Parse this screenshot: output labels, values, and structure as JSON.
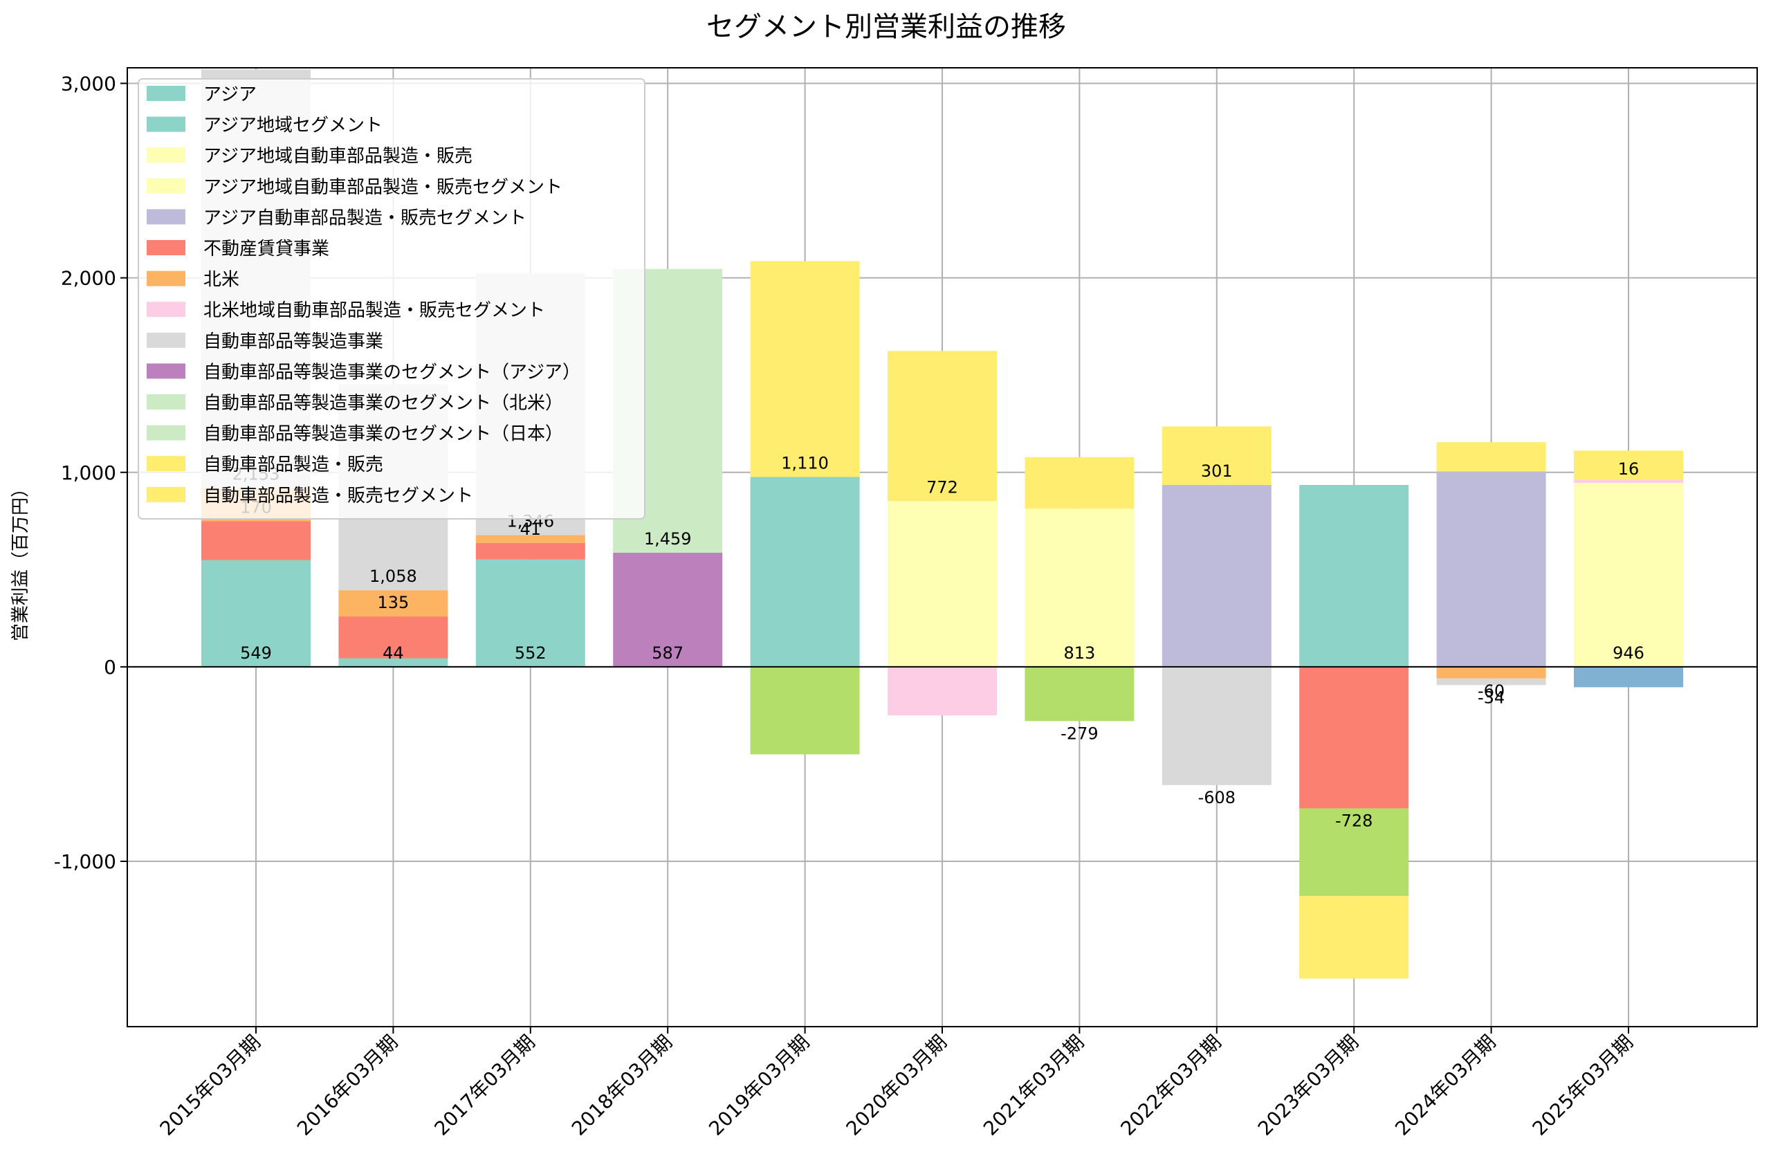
{
  "chart_data": {
    "type": "bar",
    "stacked": true,
    "title": "セグメント別営業利益の推移",
    "ylabel": "営業利益（百万円）",
    "xlabel": "",
    "ylim": [
      -1850,
      3080
    ],
    "yticks": [
      -1000,
      0,
      1000,
      2000,
      3000
    ],
    "ytick_labels": [
      "-1,000",
      "0",
      "1,000",
      "2,000",
      "3,000"
    ],
    "grid": true,
    "legend_position": "top-left",
    "categories": [
      "2015年03月期",
      "2016年03月期",
      "2017年03月期",
      "2018年03月期",
      "2019年03月期",
      "2020年03月期",
      "2021年03月期",
      "2022年03月期",
      "2023年03月期",
      "2024年03月期",
      "2025年03月期"
    ],
    "legend": [
      {
        "name": "アジア",
        "color": "#8dd3c7"
      },
      {
        "name": "アジア地域セグメント",
        "color": "#8dd3c7"
      },
      {
        "name": "アジア地域自動車部品製造・販売",
        "color": "#ffffb3"
      },
      {
        "name": "アジア地域自動車部品製造・販売セグメント",
        "color": "#ffffb3"
      },
      {
        "name": "アジア自動車部品製造・販売セグメント",
        "color": "#bebada"
      },
      {
        "name": "不動産賃貸事業",
        "color": "#fb8072"
      },
      {
        "name": "北米",
        "color": "#fdb462"
      },
      {
        "name": "北米地域自動車部品製造・販売セグメント",
        "color": "#fccde5"
      },
      {
        "name": "自動車部品等製造事業",
        "color": "#d9d9d9"
      },
      {
        "name": "自動車部品等製造事業のセグメント（アジア）",
        "color": "#bc80bd"
      },
      {
        "name": "自動車部品等製造事業のセグメント（北米）",
        "color": "#ccebc5"
      },
      {
        "name": "自動車部品等製造事業のセグメント（日本）",
        "color": "#ccebc5"
      },
      {
        "name": "自動車部品製造・販売",
        "color": "#ffed6f"
      },
      {
        "name": "自動車部品製造・販売セグメント",
        "color": "#ffed6f"
      }
    ],
    "stacks": [
      {
        "category": "2015年03月期",
        "segments": [
          {
            "color": "#8dd3c7",
            "value": 549,
            "label": "549"
          },
          {
            "color": "#fb8072",
            "value": 200,
            "label": ""
          },
          {
            "color": "#fdb462",
            "value": 170,
            "label": "170"
          },
          {
            "color": "#d9d9d9",
            "value": 2153,
            "label": "2,153"
          }
        ]
      },
      {
        "category": "2016年03月期",
        "segments": [
          {
            "color": "#8dd3c7",
            "value": 44,
            "label": "44"
          },
          {
            "color": "#fb8072",
            "value": 215,
            "label": ""
          },
          {
            "color": "#fdb462",
            "value": 135,
            "label": "135"
          },
          {
            "color": "#d9d9d9",
            "value": 1058,
            "label": "1,058"
          }
        ]
      },
      {
        "category": "2017年03月期",
        "segments": [
          {
            "color": "#8dd3c7",
            "value": 552,
            "label": "552"
          },
          {
            "color": "#fb8072",
            "value": 85,
            "label": ""
          },
          {
            "color": "#fdb462",
            "value": 41,
            "label": "41"
          },
          {
            "color": "#d9d9d9",
            "value": 1346,
            "label": "1,346"
          }
        ]
      },
      {
        "category": "2018年03月期",
        "segments": [
          {
            "color": "#bc80bd",
            "value": 587,
            "label": "587"
          },
          {
            "color": "#ccebc5",
            "value": 1459,
            "label": "1,459"
          }
        ]
      },
      {
        "category": "2019年03月期",
        "segments": [
          {
            "color": "#8dd3c7",
            "value": 976,
            "label": ""
          },
          {
            "color": "#ffed6f",
            "value": 1110,
            "label": "1,110"
          },
          {
            "color": "#b3de69",
            "value": -450,
            "label": ""
          }
        ]
      },
      {
        "category": "2020年03月期",
        "segments": [
          {
            "color": "#ffffb3",
            "value": 852,
            "label": ""
          },
          {
            "color": "#ffed6f",
            "value": 772,
            "label": "772"
          },
          {
            "color": "#fccde5",
            "value": -250,
            "label": ""
          }
        ]
      },
      {
        "category": "2021年03月期",
        "segments": [
          {
            "color": "#ffffb3",
            "value": 813,
            "label": "813"
          },
          {
            "color": "#ffed6f",
            "value": 265,
            "label": ""
          },
          {
            "color": "#b3de69",
            "value": -279,
            "label": "-279"
          }
        ]
      },
      {
        "category": "2022年03月期",
        "segments": [
          {
            "color": "#bebada",
            "value": 935,
            "label": ""
          },
          {
            "color": "#ffed6f",
            "value": 301,
            "label": "301"
          },
          {
            "color": "#d9d9d9",
            "value": -608,
            "label": "-608"
          }
        ]
      },
      {
        "category": "2023年03月期",
        "segments": [
          {
            "color": "#8dd3c7",
            "value": 935,
            "label": ""
          },
          {
            "color": "#fb8072",
            "value": -728,
            "label": "-728"
          },
          {
            "color": "#b3de69",
            "value": -450,
            "label": ""
          },
          {
            "color": "#ffed6f",
            "value": -425,
            "label": ""
          }
        ]
      },
      {
        "category": "2024年03月期",
        "segments": [
          {
            "color": "#bebada",
            "value": 1005,
            "label": ""
          },
          {
            "color": "#ffed6f",
            "value": 150,
            "label": ""
          },
          {
            "color": "#fdb462",
            "value": -60,
            "label": "-60"
          },
          {
            "color": "#d9d9d9",
            "value": -34,
            "label": "-34"
          }
        ]
      },
      {
        "category": "2025年03月期",
        "segments": [
          {
            "color": "#ffffb3",
            "value": 946,
            "label": "946"
          },
          {
            "color": "#fccde5",
            "value": 16,
            "label": "16"
          },
          {
            "color": "#ffed6f",
            "value": 150,
            "label": ""
          },
          {
            "color": "#80b1d3",
            "value": -105,
            "label": ""
          }
        ]
      }
    ]
  }
}
